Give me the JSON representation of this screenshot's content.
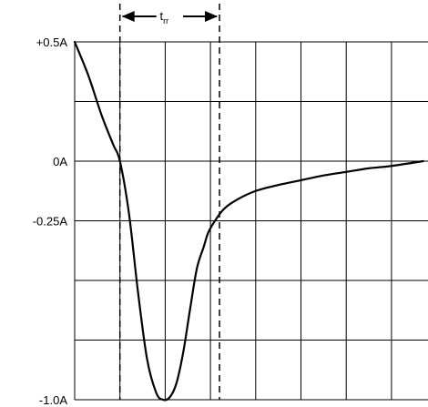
{
  "chart_data": {
    "type": "line",
    "title": "",
    "xlabel": "",
    "ylabel": "",
    "ytick_labels": [
      {
        "value": 0.5,
        "label": "+0.5A"
      },
      {
        "value": 0.0,
        "label": "0A"
      },
      {
        "value": -0.25,
        "label": "-0.25A"
      },
      {
        "value": -1.0,
        "label": "-1.0A"
      }
    ],
    "xlim": [
      0,
      7.7
    ],
    "ylim": [
      -1.0,
      0.5
    ],
    "x_divisions": 7.7,
    "y_divisions": 6,
    "grid": true,
    "annotations": [
      {
        "text": "t",
        "subscript": "rr",
        "x_start": 1.0,
        "x_end": 3.2,
        "dashed_markers": true
      }
    ],
    "series": [
      {
        "x": [
          0,
          0.3,
          0.6,
          0.85,
          1.0,
          1.2,
          1.4,
          1.6,
          1.8,
          1.95,
          2.1,
          2.25,
          2.4,
          2.55,
          2.7,
          2.85,
          2.95,
          3.1,
          3.3,
          3.6,
          4.0,
          4.5,
          5.0,
          5.5,
          6.0,
          6.5,
          7.0,
          7.7
        ],
        "y": [
          0.5,
          0.36,
          0.19,
          0.07,
          0.0,
          -0.22,
          -0.55,
          -0.83,
          -0.97,
          -1.0,
          -0.99,
          -0.93,
          -0.8,
          -0.62,
          -0.45,
          -0.36,
          -0.3,
          -0.25,
          -0.2,
          -0.16,
          -0.125,
          -0.1,
          -0.08,
          -0.06,
          -0.045,
          -0.03,
          -0.02,
          0.0
        ]
      }
    ]
  }
}
